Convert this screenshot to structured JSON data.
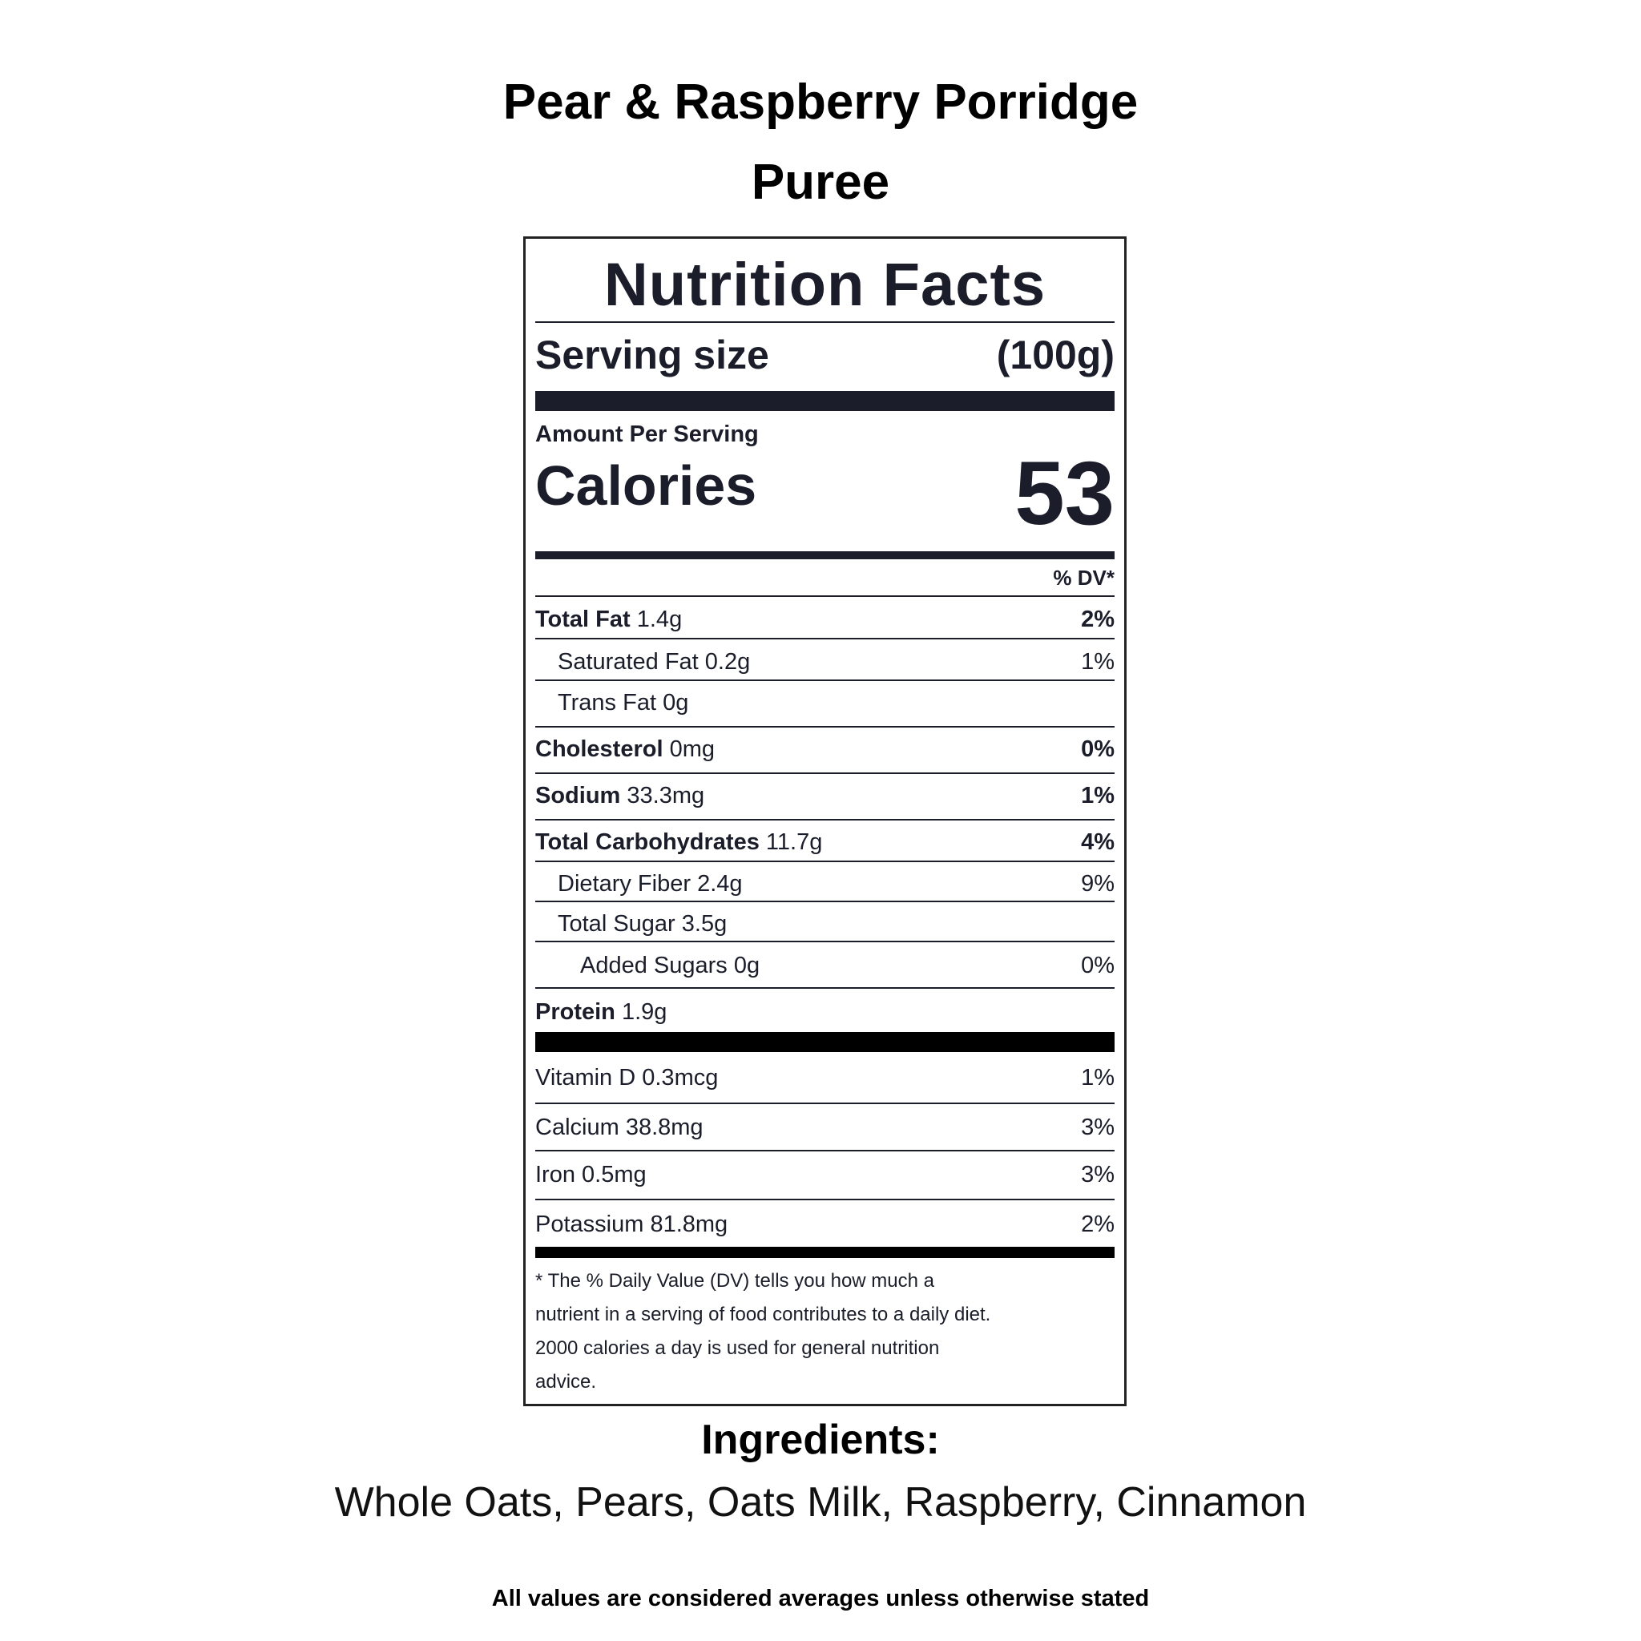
{
  "product": {
    "title_line1": "Pear & Raspberry Porridge",
    "title_line2": "Puree"
  },
  "label": {
    "heading": "Nutrition Facts",
    "serving_size_label": "Serving size",
    "serving_size_value": "(100g)",
    "amount_per_serving": "Amount Per Serving",
    "calories_label": "Calories",
    "calories_value": "53",
    "dv_header": "% DV*",
    "rows": [
      {
        "name": "Total Fat",
        "amount": "1.4g",
        "dv": "2%"
      },
      {
        "name": "Saturated Fat",
        "amount": "0.2g",
        "dv": "1%"
      },
      {
        "name": "Trans Fat",
        "amount": "0g",
        "dv": ""
      },
      {
        "name": "Cholesterol",
        "amount": "0mg",
        "dv": "0%"
      },
      {
        "name": "Sodium",
        "amount": "33.3mg",
        "dv": "1%"
      },
      {
        "name": "Total Carbohydrates",
        "amount": "11.7g",
        "dv": "4%"
      },
      {
        "name": "Dietary Fiber",
        "amount": "2.4g",
        "dv": "9%"
      },
      {
        "name": "Total Sugar",
        "amount": "3.5g",
        "dv": ""
      },
      {
        "name": "Added Sugars",
        "amount": "0g",
        "dv": "0%"
      },
      {
        "name": "Protein",
        "amount": "1.9g",
        "dv": ""
      },
      {
        "name": "Vitamin D",
        "amount": "0.3mcg",
        "dv": "1%"
      },
      {
        "name": "Calcium",
        "amount": "38.8mg",
        "dv": "3%"
      },
      {
        "name": "Iron",
        "amount": "0.5mg",
        "dv": "3%"
      },
      {
        "name": "Potassium",
        "amount": "81.8mg",
        "dv": "2%"
      }
    ],
    "footnote_line1": "* The % Daily Value (DV) tells you how much a",
    "footnote_line2": "nutrient in a serving of food contributes to a daily diet.",
    "footnote_line3": "2000 calories a day is used for general nutrition",
    "footnote_line4": "advice."
  },
  "ingredients": {
    "heading": "Ingredients:",
    "list": "Whole Oats, Pears, Oats Milk, Raspberry, Cinnamon"
  },
  "disclaimer": "All values are considered averages unless otherwise stated"
}
